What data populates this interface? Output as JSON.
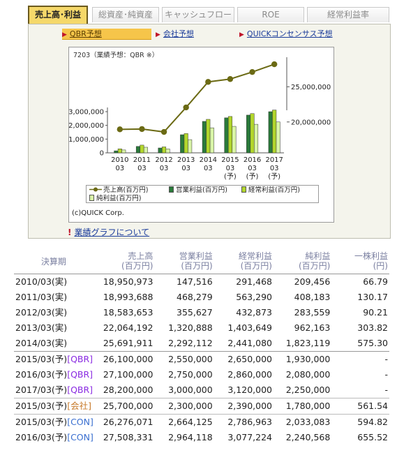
{
  "tabs": [
    {
      "label": "売上高･利益",
      "active": true
    },
    {
      "label": "総資産･純資産",
      "active": false
    },
    {
      "label": "キャッシュフロー",
      "active": false
    },
    {
      "label": "ROE",
      "active": false
    },
    {
      "label": "経常利益率",
      "active": false
    }
  ],
  "subnav": {
    "qbr": "QBR予想",
    "company": "会社予想",
    "quick": "QUICKコンセンサス予想"
  },
  "chart_title": "7203（業績予想：QBR ※）",
  "copyright": "(c)QUICK Corp.",
  "note_link": "業績グラフについて",
  "colors": {
    "tab_active": "#f5d86a",
    "sales_line": "#6b6a14",
    "operating": "#2a7a3a",
    "ordinary": "#b2d62c",
    "net": "#d9f5a8"
  },
  "chart_data": {
    "type": "bar+line",
    "categories": [
      [
        "2010",
        "03",
        ""
      ],
      [
        "2011",
        "03",
        ""
      ],
      [
        "2012",
        "03",
        ""
      ],
      [
        "2013",
        "03",
        ""
      ],
      [
        "2014",
        "03",
        ""
      ],
      [
        "2015",
        "03",
        "(予)"
      ],
      [
        "2016",
        "03",
        "(予)"
      ],
      [
        "2017",
        "03",
        "(予)"
      ]
    ],
    "bar_series": [
      {
        "name": "営業利益(百万円)",
        "values": [
          147516,
          468279,
          355627,
          1320888,
          2292112,
          2550000,
          2750000,
          3000000
        ]
      },
      {
        "name": "経常利益(百万円)",
        "values": [
          291468,
          563290,
          432873,
          1403649,
          2441080,
          2650000,
          2860000,
          3120000
        ]
      },
      {
        "name": "純利益(百万円)",
        "values": [
          209456,
          408183,
          283559,
          962163,
          1823119,
          1930000,
          2080000,
          2250000
        ]
      }
    ],
    "line_series": {
      "name": "売上高(百万円)",
      "values": [
        18950973,
        18993688,
        18583653,
        22064192,
        25691911,
        26100000,
        27100000,
        28200000
      ]
    },
    "left_axis": {
      "ticks": [
        "3,000,000",
        "2,000,000",
        "1,000,000",
        "0"
      ],
      "ylim": [
        0,
        3000000
      ]
    },
    "right_axis": {
      "ticks": [
        "25,000,000",
        "20,000,000"
      ],
      "ylim": [
        17000000,
        29000000
      ]
    },
    "legend": [
      "売上高(百万円)",
      "営業利益(百万円)",
      "経常利益(百万円)",
      "純利益(百万円)"
    ]
  },
  "table": {
    "headers": [
      {
        "l1": "決算期",
        "l2": ""
      },
      {
        "l1": "売上高",
        "l2": "(百万円)"
      },
      {
        "l1": "営業利益",
        "l2": "(百万円)"
      },
      {
        "l1": "経常利益",
        "l2": "(百万円)"
      },
      {
        "l1": "純利益",
        "l2": "(百万円)"
      },
      {
        "l1": "一株利益",
        "l2": "(円)"
      }
    ],
    "rows": [
      {
        "period": "2010/03(実)",
        "tag": "",
        "tagtype": "",
        "sales": "18,950,973",
        "op": "147,516",
        "ord": "291,468",
        "net": "209,456",
        "eps": "66.79",
        "sep": ""
      },
      {
        "period": "2011/03(実)",
        "tag": "",
        "tagtype": "",
        "sales": "18,993,688",
        "op": "468,279",
        "ord": "563,290",
        "net": "408,183",
        "eps": "130.17",
        "sep": ""
      },
      {
        "period": "2012/03(実)",
        "tag": "",
        "tagtype": "",
        "sales": "18,583,653",
        "op": "355,627",
        "ord": "432,873",
        "net": "283,559",
        "eps": "90.21",
        "sep": ""
      },
      {
        "period": "2013/03(実)",
        "tag": "",
        "tagtype": "",
        "sales": "22,064,192",
        "op": "1,320,888",
        "ord": "1,403,649",
        "net": "962,163",
        "eps": "303.82",
        "sep": ""
      },
      {
        "period": "2014/03(実)",
        "tag": "",
        "tagtype": "",
        "sales": "25,691,911",
        "op": "2,292,112",
        "ord": "2,441,080",
        "net": "1,823,119",
        "eps": "575.30",
        "sep": ""
      },
      {
        "period": "2015/03(予)",
        "tag": "[QBR]",
        "tagtype": "qbr",
        "sales": "26,100,000",
        "op": "2,550,000",
        "ord": "2,650,000",
        "net": "1,930,000",
        "eps": "-",
        "sep": "sep"
      },
      {
        "period": "2016/03(予)",
        "tag": "[QBR]",
        "tagtype": "qbr",
        "sales": "27,100,000",
        "op": "2,750,000",
        "ord": "2,860,000",
        "net": "2,080,000",
        "eps": "-",
        "sep": ""
      },
      {
        "period": "2017/03(予)",
        "tag": "[QBR]",
        "tagtype": "qbr",
        "sales": "28,200,000",
        "op": "3,000,000",
        "ord": "3,120,000",
        "net": "2,250,000",
        "eps": "-",
        "sep": ""
      },
      {
        "period": "2015/03(予)",
        "tag": "[会社]",
        "tagtype": "kaisha",
        "sales": "25,700,000",
        "op": "2,300,000",
        "ord": "2,390,000",
        "net": "1,780,000",
        "eps": "561.54",
        "sep": "sep2"
      },
      {
        "period": "2015/03(予)",
        "tag": "[CON]",
        "tagtype": "con",
        "sales": "26,276,071",
        "op": "2,664,125",
        "ord": "2,786,963",
        "net": "2,033,083",
        "eps": "594.82",
        "sep": "sep2"
      },
      {
        "period": "2016/03(予)",
        "tag": "[CON]",
        "tagtype": "con",
        "sales": "27,508,331",
        "op": "2,964,118",
        "ord": "3,077,224",
        "net": "2,240,568",
        "eps": "655.52",
        "sep": ""
      }
    ]
  }
}
